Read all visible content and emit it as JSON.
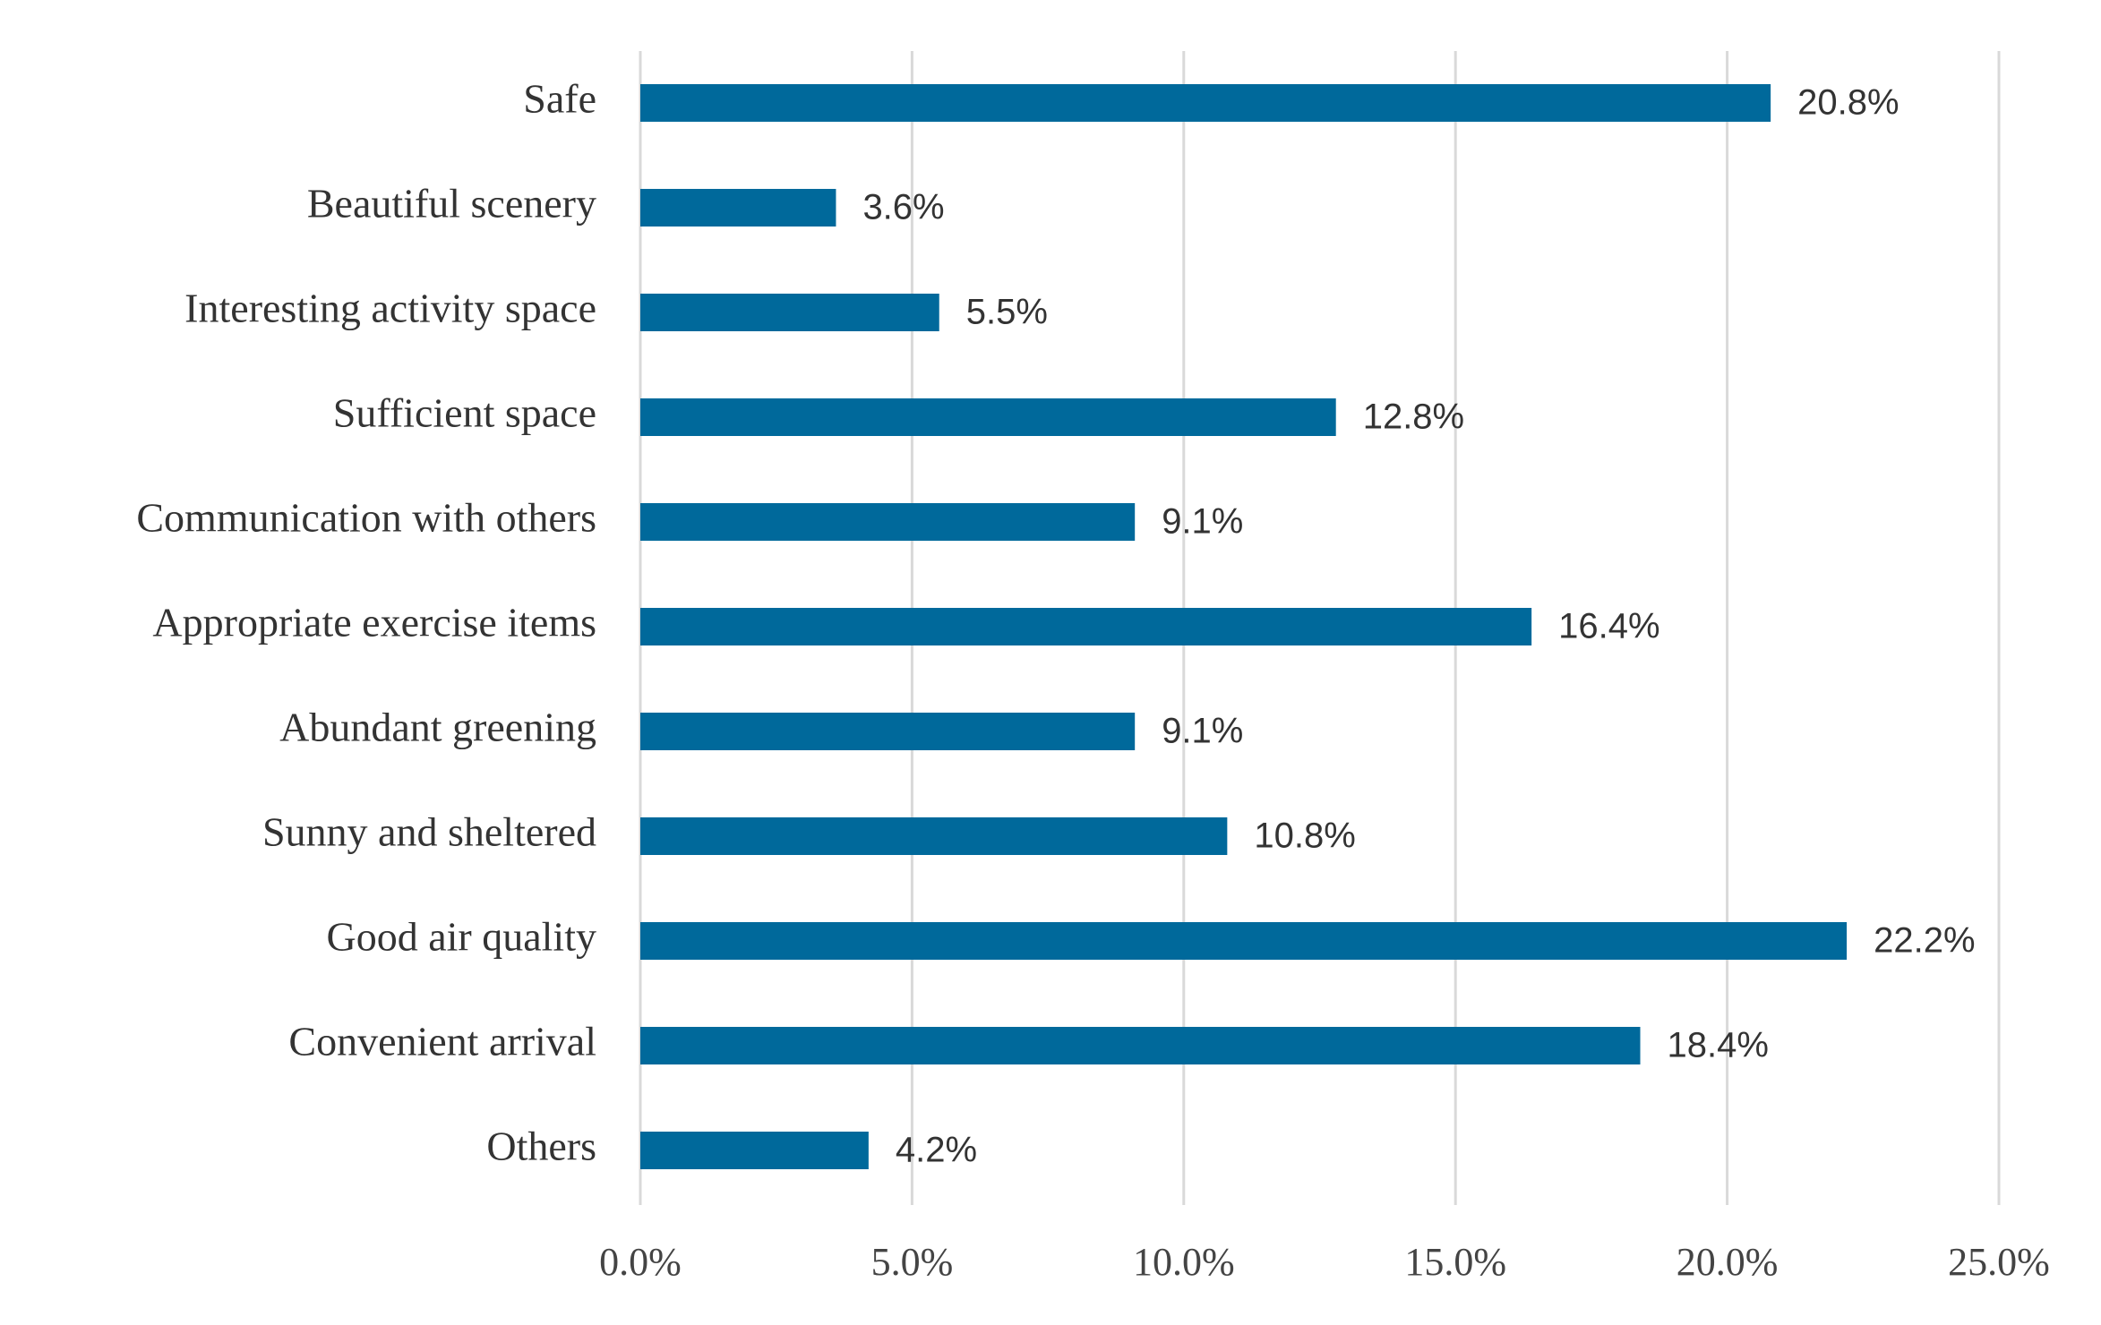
{
  "chart_data": {
    "type": "hbar",
    "categories": [
      "Safe",
      "Beautiful scenery",
      "Interesting activity space",
      "Sufficient space",
      "Communication with others",
      "Appropriate exercise items",
      "Abundant greening",
      "Sunny and sheltered",
      "Good air quality",
      "Convenient arrival",
      "Others"
    ],
    "values": [
      20.8,
      3.6,
      5.5,
      12.8,
      9.1,
      16.4,
      9.1,
      10.8,
      22.2,
      18.4,
      4.2
    ],
    "value_labels": [
      "20.8%",
      "3.6%",
      "5.5%",
      "12.8%",
      "9.1%",
      "16.4%",
      "9.1%",
      "10.8%",
      "22.2%",
      "18.4%",
      "4.2%"
    ],
    "color": "#00699b",
    "xlim": [
      0,
      25
    ],
    "xticks": [
      {
        "value": 0,
        "label": "0.0%"
      },
      {
        "value": 5,
        "label": "5.0%"
      },
      {
        "value": 10,
        "label": "10.0%"
      },
      {
        "value": 15,
        "label": "15.0%"
      },
      {
        "value": 20,
        "label": "20.0%"
      },
      {
        "value": 25,
        "label": "25.0%"
      }
    ],
    "grid": true
  }
}
